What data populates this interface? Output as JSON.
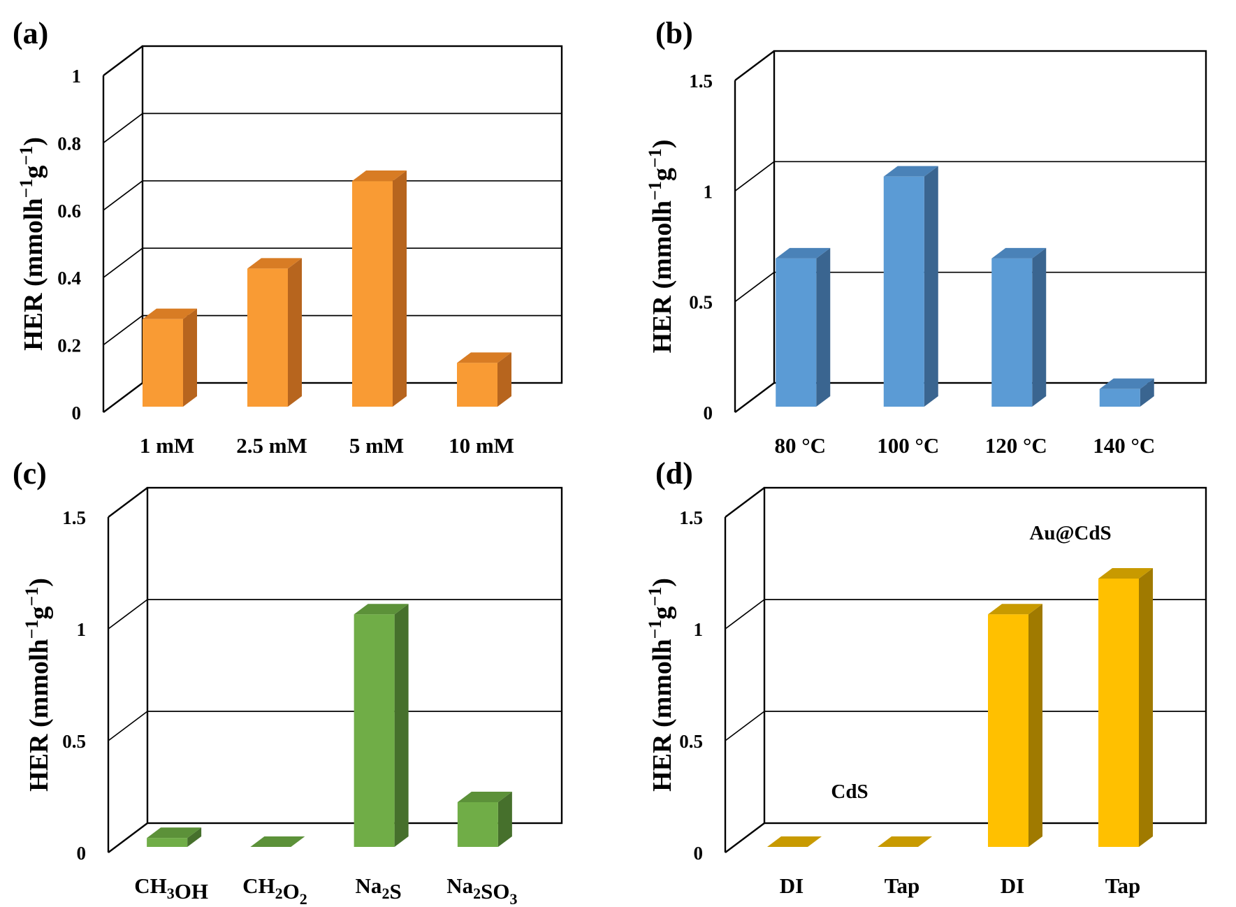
{
  "chart_data": [
    {
      "panel": "(a)",
      "type": "bar",
      "ylabel": "HER (mmolh-1g-1)",
      "ylabel_parts": [
        "HER (mmolh",
        "−1",
        "g",
        "−1",
        ")"
      ],
      "ylim": [
        0,
        1
      ],
      "yticks": [
        "0",
        "0.2",
        "0.4",
        "0.6",
        "0.8",
        "1"
      ],
      "categories": [
        {
          "label": "1 mM",
          "parts": [
            {
              "t": "1 mM"
            }
          ]
        },
        {
          "label": "2.5 mM",
          "parts": [
            {
              "t": "2.5 mM"
            }
          ]
        },
        {
          "label": "5 mM",
          "parts": [
            {
              "t": "5 mM"
            }
          ]
        },
        {
          "label": "10 mM",
          "parts": [
            {
              "t": "10 mM"
            }
          ]
        }
      ],
      "values": [
        0.26,
        0.41,
        0.67,
        0.13
      ],
      "colors": {
        "front": "#F99B34",
        "side": "#B7651E",
        "top": "#D87C24"
      },
      "grid": true,
      "annotations": []
    },
    {
      "panel": "(b)",
      "type": "bar",
      "ylabel": "HER (mmolh-1g-1)",
      "ylabel_parts": [
        "HER (mmolh",
        "−1",
        "g",
        "−1",
        ")"
      ],
      "ylim": [
        0,
        1.5
      ],
      "yticks": [
        "0",
        "0.5",
        "1",
        "1.5"
      ],
      "categories": [
        {
          "label": "80 °C",
          "parts": [
            {
              "t": "80 °C"
            }
          ]
        },
        {
          "label": "100 °C",
          "parts": [
            {
              "t": "100 °C"
            }
          ]
        },
        {
          "label": "120 °C",
          "parts": [
            {
              "t": "120 °C"
            }
          ]
        },
        {
          "label": "140 °C",
          "parts": [
            {
              "t": "140 °C"
            }
          ]
        }
      ],
      "values": [
        0.67,
        1.04,
        0.67,
        0.08
      ],
      "colors": {
        "front": "#5B9BD5",
        "side": "#3A6590",
        "top": "#4A82B8"
      },
      "grid": true,
      "annotations": []
    },
    {
      "panel": "(c)",
      "type": "bar",
      "ylabel": "HER (mmolh-1g-1)",
      "ylabel_parts": [
        "HER (mmolh",
        "−1",
        "g",
        "−1",
        ")"
      ],
      "ylim": [
        0,
        1.5
      ],
      "yticks": [
        "0",
        "0.5",
        "1",
        "1.5"
      ],
      "categories": [
        {
          "label": "CH3OH",
          "parts": [
            {
              "t": "CH"
            },
            {
              "t": "3",
              "sub": true
            },
            {
              "t": "OH"
            }
          ]
        },
        {
          "label": "CH2O2",
          "parts": [
            {
              "t": "CH"
            },
            {
              "t": "2",
              "sub": true
            },
            {
              "t": "O"
            },
            {
              "t": "2",
              "sub": true
            }
          ]
        },
        {
          "label": "Na2S",
          "parts": [
            {
              "t": "Na"
            },
            {
              "t": "2",
              "sub": true
            },
            {
              "t": "S"
            }
          ]
        },
        {
          "label": "Na2SO3",
          "parts": [
            {
              "t": "Na"
            },
            {
              "t": "2",
              "sub": true
            },
            {
              "t": "SO"
            },
            {
              "t": "3",
              "sub": true
            }
          ]
        }
      ],
      "values": [
        0.04,
        0.0,
        1.04,
        0.2
      ],
      "colors": {
        "front": "#70AD47",
        "side": "#46702C",
        "top": "#5C9139"
      },
      "grid": true,
      "annotations": []
    },
    {
      "panel": "(d)",
      "type": "bar",
      "ylabel": "HER (mmolh-1g-1)",
      "ylabel_parts": [
        "HER (mmolh",
        "−1",
        "g",
        "−1",
        ")"
      ],
      "ylim": [
        0,
        1.5
      ],
      "yticks": [
        "0",
        "0.5",
        "1",
        "1.5"
      ],
      "categories": [
        {
          "label": "DI",
          "parts": [
            {
              "t": "DI"
            }
          ]
        },
        {
          "label": "Tap",
          "parts": [
            {
              "t": "Tap"
            }
          ]
        },
        {
          "label": "DI",
          "parts": [
            {
              "t": "DI"
            }
          ]
        },
        {
          "label": "Tap",
          "parts": [
            {
              "t": "Tap"
            }
          ]
        }
      ],
      "values": [
        0.0,
        0.0,
        1.04,
        1.2
      ],
      "colors": {
        "front": "#FFC000",
        "side": "#A07A00",
        "top": "#C89A00"
      },
      "grid": true,
      "annotations": [
        {
          "text": "CdS",
          "group": [
            0,
            1
          ]
        },
        {
          "text": "Au@CdS",
          "group": [
            2,
            3
          ]
        }
      ]
    }
  ]
}
